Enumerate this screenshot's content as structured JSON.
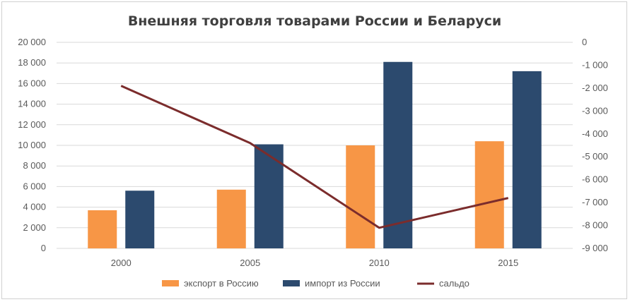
{
  "chart_data": {
    "type": "bar",
    "title": "Внешняя торговля  товарами России и Беларуси",
    "categories": [
      "2000",
      "2005",
      "2010",
      "2015"
    ],
    "series": [
      {
        "name": "экспорт в Россию",
        "type": "bar",
        "axis": "left",
        "color": "#f79646",
        "values": [
          3700,
          5700,
          10000,
          10400
        ]
      },
      {
        "name": "импорт из России",
        "type": "bar",
        "axis": "left",
        "color": "#2c4a6e",
        "values": [
          5600,
          10100,
          18100,
          17200
        ]
      },
      {
        "name": "сальдо",
        "type": "line",
        "axis": "right",
        "color": "#7b2c2c",
        "values": [
          -1900,
          -4400,
          -8100,
          -6800
        ]
      }
    ],
    "ylim_left": [
      0,
      20000
    ],
    "yticks_left": [
      "20 000",
      "18 000",
      "16 000",
      "14 000",
      "12 000",
      "10 000",
      "8 000",
      "6 000",
      "4 000",
      "2 000",
      "0"
    ],
    "ylim_right": [
      -9000,
      0
    ],
    "yticks_right": [
      "0",
      "-1 000",
      "-2 000",
      "-3 000",
      "-4 000",
      "-5 000",
      "-6 000",
      "-7 000",
      "-8 000",
      "-9 000"
    ],
    "grid": true,
    "legend_position": "bottom"
  }
}
